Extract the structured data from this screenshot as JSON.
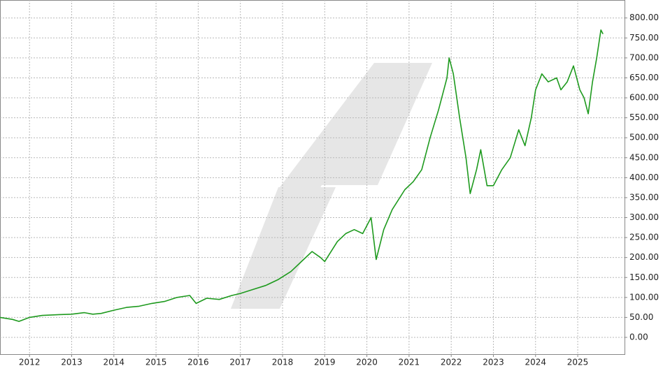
{
  "chart_data": {
    "type": "line",
    "color": "#1e9a1e",
    "grid": true,
    "x": [
      2011.3,
      2011.6,
      2011.75,
      2012.0,
      2012.3,
      2012.7,
      2013.0,
      2013.3,
      2013.5,
      2013.7,
      2014.0,
      2014.3,
      2014.6,
      2014.9,
      2015.2,
      2015.5,
      2015.8,
      2015.95,
      2016.2,
      2016.5,
      2016.8,
      2017.0,
      2017.3,
      2017.6,
      2017.9,
      2018.2,
      2018.5,
      2018.7,
      2018.9,
      2019.0,
      2019.3,
      2019.5,
      2019.7,
      2019.9,
      2020.1,
      2020.22,
      2020.4,
      2020.6,
      2020.9,
      2021.1,
      2021.3,
      2021.5,
      2021.7,
      2021.9,
      2021.95,
      2022.05,
      2022.2,
      2022.35,
      2022.45,
      2022.6,
      2022.7,
      2022.85,
      2023.0,
      2023.2,
      2023.4,
      2023.6,
      2023.75,
      2023.9,
      2024.0,
      2024.15,
      2024.3,
      2024.5,
      2024.6,
      2024.75,
      2024.9,
      2025.05,
      2025.15,
      2025.25,
      2025.35,
      2025.45,
      2025.55,
      2025.6
    ],
    "values": [
      50,
      45,
      40,
      50,
      55,
      57,
      58,
      62,
      58,
      60,
      68,
      75,
      78,
      85,
      90,
      100,
      105,
      85,
      98,
      95,
      105,
      110,
      120,
      130,
      145,
      165,
      195,
      215,
      200,
      190,
      240,
      260,
      270,
      260,
      300,
      195,
      270,
      320,
      370,
      390,
      420,
      500,
      570,
      650,
      700,
      660,
      550,
      450,
      360,
      420,
      470,
      380,
      380,
      420,
      450,
      520,
      480,
      550,
      620,
      660,
      640,
      650,
      620,
      640,
      680,
      620,
      600,
      560,
      640,
      700,
      770,
      760
    ],
    "xlim": [
      2011.3,
      2026.11
    ],
    "xticks": [
      2012,
      2013,
      2014,
      2015,
      2016,
      2017,
      2018,
      2019,
      2020,
      2021,
      2022,
      2023,
      2024,
      2025
    ],
    "ylim": [
      -42,
      845
    ],
    "yticks": [
      {
        "value": 0,
        "label": "0.00"
      },
      {
        "value": 50,
        "label": "50.00"
      },
      {
        "value": 100,
        "label": "100.00"
      },
      {
        "value": 150,
        "label": "150.00"
      },
      {
        "value": 200,
        "label": "200.00"
      },
      {
        "value": 250,
        "label": "250.00"
      },
      {
        "value": 300,
        "label": "300.00"
      },
      {
        "value": 350,
        "label": "350.00"
      },
      {
        "value": 400,
        "label": "400.00"
      },
      {
        "value": 450,
        "label": "450.00"
      },
      {
        "value": 500,
        "label": "500.00"
      },
      {
        "value": 550,
        "label": "550.00"
      },
      {
        "value": 600,
        "label": "600.00"
      },
      {
        "value": 650,
        "label": "650.00"
      },
      {
        "value": 700,
        "label": "700.00"
      },
      {
        "value": 750,
        "label": "750.00"
      },
      {
        "value": 800,
        "label": "800.00"
      }
    ]
  }
}
